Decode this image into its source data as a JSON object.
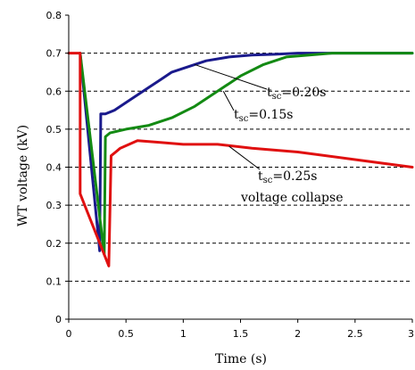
{
  "chart_data": {
    "type": "line",
    "title": "",
    "xlabel": "Time (s)",
    "ylabel": "WT voltage (kV)",
    "xlim": [
      0,
      3
    ],
    "ylim": [
      0,
      0.8
    ],
    "xticks": [
      0,
      0.5,
      1,
      1.5,
      2,
      2.5,
      3
    ],
    "xtick_labels": [
      "0",
      "0.5",
      "1",
      "1.5",
      "2",
      "2.5",
      "3"
    ],
    "yticks": [
      0,
      0.1,
      0.2,
      0.3,
      0.4,
      0.5,
      0.6,
      0.7,
      0.8
    ],
    "ytick_labels": [
      "0",
      "0.1",
      "0.2",
      "0.3",
      "0.4",
      "0.5",
      "0.6",
      "0.7",
      "0.8"
    ],
    "grid": "horizontal-dashed",
    "legend": "none",
    "series": [
      {
        "color": "#1a1a8c",
        "x": [
          0.1,
          0.27,
          0.28,
          0.32,
          0.4,
          0.5,
          0.6,
          0.7,
          0.8,
          0.9,
          1.0,
          1.2,
          1.4,
          1.6,
          1.8,
          2.0,
          2.2,
          3.0
        ],
        "y": [
          0.7,
          0.18,
          0.54,
          0.54,
          0.55,
          0.57,
          0.59,
          0.61,
          0.63,
          0.65,
          0.66,
          0.68,
          0.69,
          0.695,
          0.697,
          0.7,
          0.7,
          0.7
        ]
      },
      {
        "color": "#138a13",
        "x": [
          0.1,
          0.31,
          0.32,
          0.36,
          0.5,
          0.7,
          0.9,
          1.1,
          1.3,
          1.5,
          1.7,
          1.9,
          2.1,
          2.3,
          2.6,
          3.0
        ],
        "y": [
          0.7,
          0.17,
          0.48,
          0.49,
          0.5,
          0.51,
          0.53,
          0.56,
          0.6,
          0.64,
          0.67,
          0.69,
          0.695,
          0.7,
          0.7,
          0.7
        ]
      },
      {
        "color": "#e01010",
        "x": [
          0,
          0.1,
          0.1,
          0.35,
          0.37,
          0.45,
          0.6,
          0.8,
          1.0,
          1.3,
          1.6,
          2.0,
          2.5,
          3.0
        ],
        "y": [
          0.7,
          0.7,
          0.33,
          0.14,
          0.43,
          0.45,
          0.47,
          0.465,
          0.46,
          0.46,
          0.45,
          0.44,
          0.42,
          0.4
        ]
      }
    ],
    "annotations": [
      {
        "main": "t",
        "sub": "sc",
        "value": "=0.20s",
        "target": [
          1.1,
          0.67
        ]
      },
      {
        "main": "t",
        "sub": "sc",
        "value": "=0.15s",
        "target": [
          1.35,
          0.6
        ]
      },
      {
        "main": "t",
        "sub": "sc",
        "value": "=0.25s",
        "target": [
          1.4,
          0.455
        ]
      },
      {
        "main": "voltage collapse"
      }
    ]
  }
}
